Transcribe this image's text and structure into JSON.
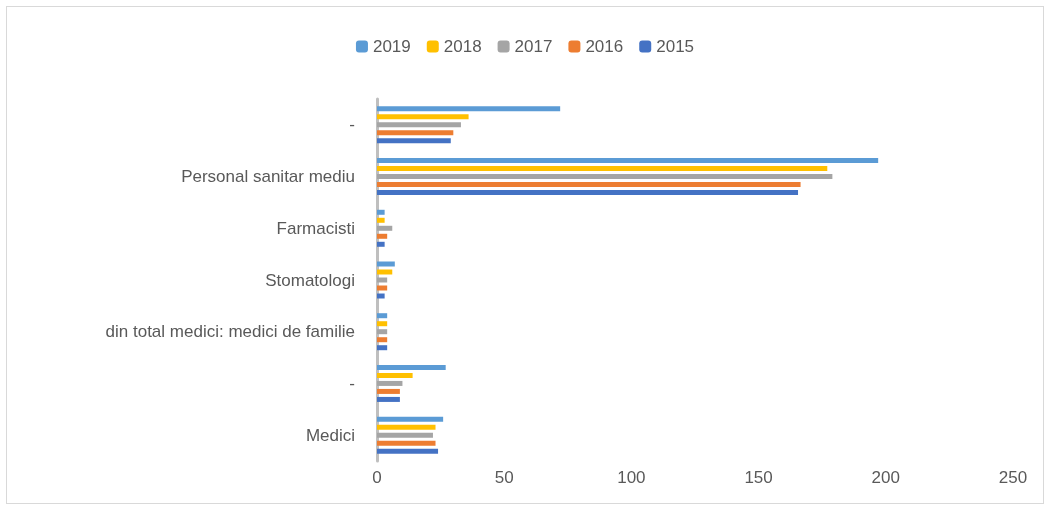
{
  "chart_data": {
    "type": "bar",
    "orientation": "horizontal",
    "categories": [
      "-",
      "Personal sanitar mediu",
      "Farmacisti",
      "Stomatologi",
      "din total medici: medici de familie",
      "-",
      "Medici"
    ],
    "series": [
      {
        "name": "2019",
        "color": "#5b9bd5",
        "values": [
          72,
          197,
          3,
          7,
          4,
          27,
          26
        ]
      },
      {
        "name": "2018",
        "color": "#ffc000",
        "values": [
          36,
          177,
          3,
          6,
          4,
          14,
          23
        ]
      },
      {
        "name": "2017",
        "color": "#a5a5a5",
        "values": [
          33,
          179,
          6,
          4,
          4,
          10,
          22
        ]
      },
      {
        "name": "2016",
        "color": "#ed7d31",
        "values": [
          30,
          166.5,
          4,
          4,
          4,
          9,
          23
        ]
      },
      {
        "name": "2015",
        "color": "#4472c4",
        "values": [
          29,
          165.5,
          3,
          3,
          4,
          9,
          24
        ]
      }
    ],
    "xlim": [
      0,
      250
    ],
    "xticks": [
      0,
      50,
      100,
      150,
      200,
      250
    ],
    "grid": false,
    "legend": "top"
  }
}
